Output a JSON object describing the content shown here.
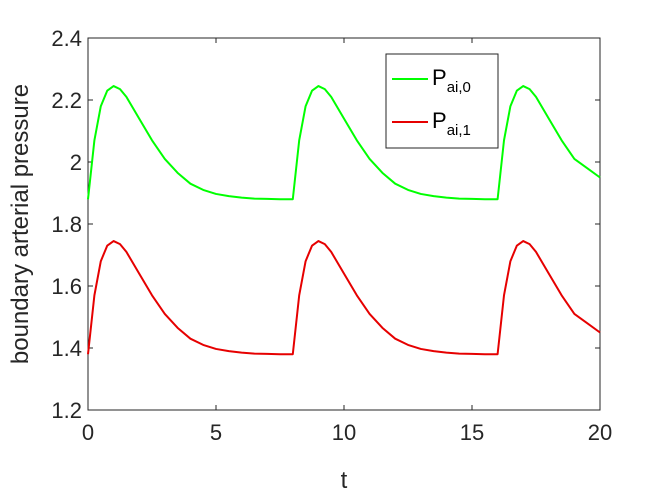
{
  "chart_data": {
    "type": "line",
    "title": "",
    "xlabel": "t",
    "ylabel": "boundary arterial pressure",
    "xlim": [
      0,
      20
    ],
    "ylim": [
      1.2,
      2.4
    ],
    "xticks": [
      0,
      5,
      10,
      15,
      20
    ],
    "yticks": [
      1.2,
      1.4,
      1.6,
      1.8,
      2.0,
      2.2,
      2.4
    ],
    "xtick_labels": [
      "0",
      "5",
      "10",
      "15",
      "20"
    ],
    "ytick_labels": [
      "1.2",
      "1.4",
      "1.6",
      "1.8",
      "2",
      "2.2",
      "2.4"
    ],
    "grid": false,
    "legend_position": "top-right",
    "series": [
      {
        "name": "P",
        "name_sub": "ai,0",
        "color": "#00ff00",
        "x": [
          0,
          0.25,
          0.5,
          0.75,
          1,
          1.25,
          1.5,
          2,
          2.5,
          3,
          3.5,
          4,
          4.5,
          5,
          5.5,
          6,
          6.5,
          7,
          7.5,
          8,
          8.25,
          8.5,
          8.75,
          9,
          9.25,
          9.5,
          10,
          10.5,
          11,
          11.5,
          12,
          12.5,
          13,
          13.5,
          14,
          14.5,
          15,
          15.5,
          16,
          16.25,
          16.5,
          16.75,
          17,
          17.25,
          17.5,
          18,
          18.5,
          19,
          19.5,
          20
        ],
        "y": [
          1.88,
          2.07,
          2.18,
          2.23,
          2.245,
          2.235,
          2.21,
          2.14,
          2.07,
          2.01,
          1.965,
          1.93,
          1.91,
          1.897,
          1.89,
          1.885,
          1.882,
          1.881,
          1.88,
          1.88,
          2.07,
          2.18,
          2.23,
          2.245,
          2.235,
          2.21,
          2.14,
          2.07,
          2.01,
          1.965,
          1.93,
          1.91,
          1.897,
          1.89,
          1.885,
          1.882,
          1.881,
          1.88,
          1.88,
          2.07,
          2.18,
          2.23,
          2.245,
          2.235,
          2.21,
          2.14,
          2.07,
          2.01,
          1.98,
          1.95
        ]
      },
      {
        "name": "P",
        "name_sub": "ai,1",
        "color": "#e60000",
        "x": [
          0,
          0.25,
          0.5,
          0.75,
          1,
          1.25,
          1.5,
          2,
          2.5,
          3,
          3.5,
          4,
          4.5,
          5,
          5.5,
          6,
          6.5,
          7,
          7.5,
          8,
          8.25,
          8.5,
          8.75,
          9,
          9.25,
          9.5,
          10,
          10.5,
          11,
          11.5,
          12,
          12.5,
          13,
          13.5,
          14,
          14.5,
          15,
          15.5,
          16,
          16.25,
          16.5,
          16.75,
          17,
          17.25,
          17.5,
          18,
          18.5,
          19,
          19.5,
          20
        ],
        "y": [
          1.38,
          1.57,
          1.68,
          1.73,
          1.745,
          1.735,
          1.71,
          1.64,
          1.57,
          1.51,
          1.465,
          1.43,
          1.41,
          1.397,
          1.39,
          1.385,
          1.382,
          1.381,
          1.38,
          1.38,
          1.57,
          1.68,
          1.73,
          1.745,
          1.735,
          1.71,
          1.64,
          1.57,
          1.51,
          1.465,
          1.43,
          1.41,
          1.397,
          1.39,
          1.385,
          1.382,
          1.381,
          1.38,
          1.38,
          1.57,
          1.68,
          1.73,
          1.745,
          1.735,
          1.71,
          1.64,
          1.57,
          1.51,
          1.48,
          1.45
        ]
      }
    ]
  }
}
